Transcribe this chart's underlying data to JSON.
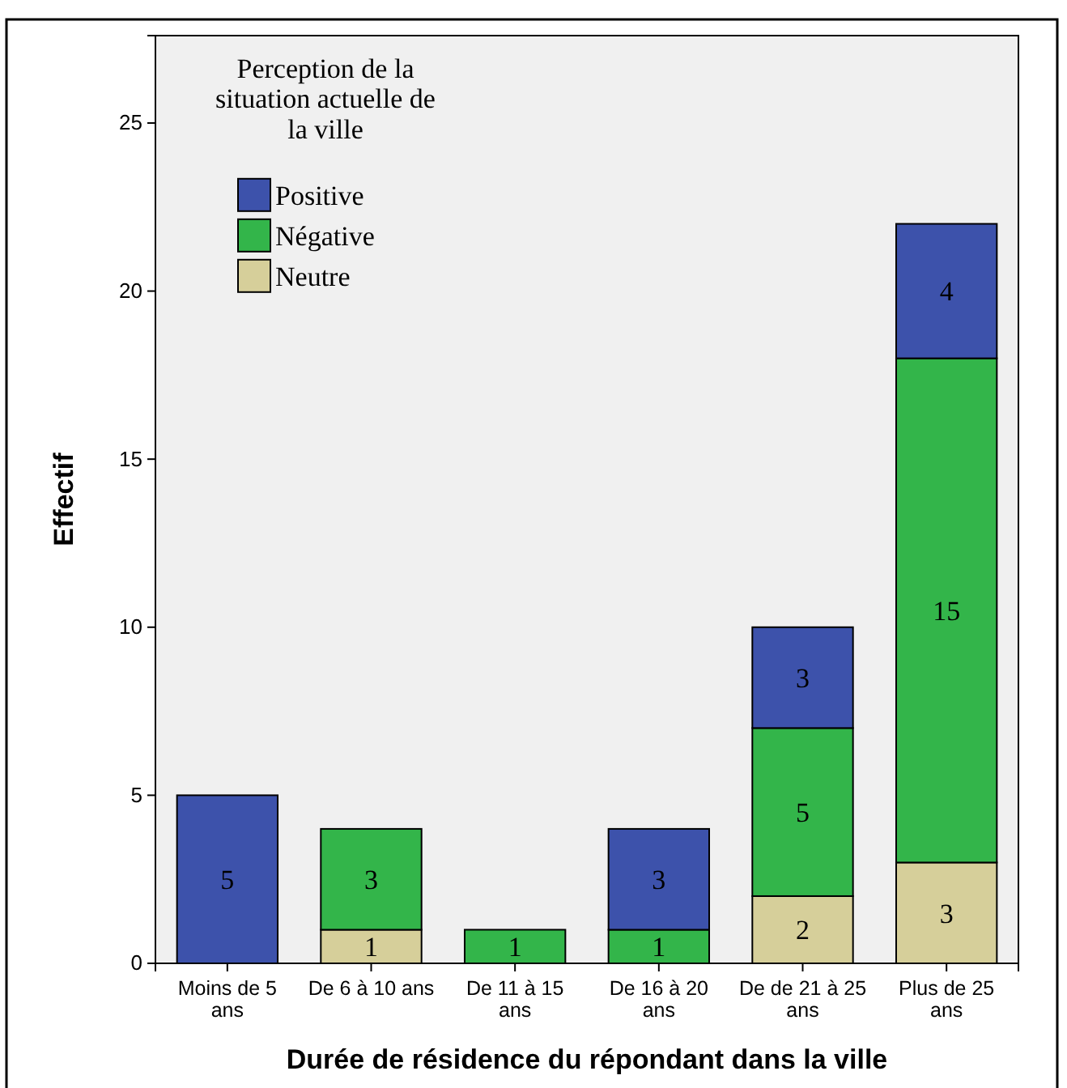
{
  "chart_data": {
    "type": "bar",
    "stacked": true,
    "xlabel": "Durée de résidence du répondant dans la ville",
    "ylabel": "Effectif",
    "legend_title": "Perception de la situation actuelle de la ville",
    "legend": "top left",
    "data_labels": true,
    "grid": false,
    "categories": [
      "Moins de 5 ans",
      "De 6 à 10 ans",
      "De 11 à 15 ans",
      "De 16 à 20 ans",
      "De de 21 à 25 ans",
      "Plus de 25 ans"
    ],
    "ylim": [
      0,
      27.6
    ],
    "yticks": [
      0,
      5,
      10,
      15,
      20,
      25
    ],
    "series": [
      {
        "name": "Neutre",
        "color": "#d6cf9a",
        "values": [
          null,
          1,
          null,
          null,
          2,
          3
        ]
      },
      {
        "name": "Négative",
        "color": "#33b54a",
        "values": [
          null,
          3,
          1,
          1,
          5,
          15
        ]
      },
      {
        "name": "Positive",
        "color": "#3d52ab",
        "values": [
          5,
          null,
          null,
          3,
          3,
          4
        ]
      }
    ]
  }
}
